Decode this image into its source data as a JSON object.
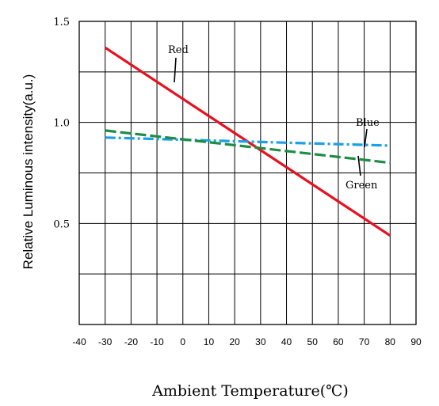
{
  "chart_data": {
    "type": "line",
    "xlabel": "Ambient  Temperature(℃)",
    "ylabel": "Relative Luminous intensity(a.u.)",
    "xlim": [
      -40,
      90
    ],
    "ylim": [
      0,
      1.5
    ],
    "x_ticks": [
      "-40",
      "-30",
      "-20",
      "-10",
      "0",
      "10",
      "20",
      "30",
      "40",
      "50",
      "60",
      "70",
      "80",
      "90"
    ],
    "y_ticks": [
      {
        "value": 0.5,
        "label": "0.5"
      },
      {
        "value": 1.0,
        "label": "1.0"
      },
      {
        "value": 1.5,
        "label": "1.5"
      }
    ],
    "grid": true,
    "series": [
      {
        "name": "Red",
        "color": "#e8101e",
        "style": "solid",
        "x": [
          -30,
          80
        ],
        "y": [
          1.37,
          0.44
        ]
      },
      {
        "name": "Blue",
        "color": "#1aa0e6",
        "style": "dashdot",
        "x": [
          -30,
          80
        ],
        "y": [
          0.925,
          0.885
        ]
      },
      {
        "name": "Green",
        "color": "#1e8c46",
        "style": "dashed",
        "x": [
          -30,
          80
        ],
        "y": [
          0.96,
          0.8
        ]
      }
    ]
  }
}
